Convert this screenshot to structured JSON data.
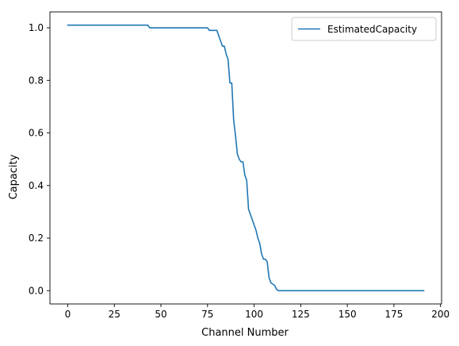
{
  "chart_data": {
    "type": "line",
    "title": "",
    "xlabel": "Channel Number",
    "ylabel": "Capacity",
    "xlim": [
      -9.55,
      200.55
    ],
    "ylim": [
      -0.0505,
      1.0605
    ],
    "x_ticks": [
      0,
      25,
      50,
      75,
      100,
      125,
      150,
      175,
      200
    ],
    "y_ticks": [
      0.0,
      0.2,
      0.4,
      0.6,
      0.8,
      1.0
    ],
    "x_tick_labels": [
      "0",
      "25",
      "50",
      "75",
      "100",
      "125",
      "150",
      "175",
      "200"
    ],
    "y_tick_labels": [
      "0.0",
      "0.2",
      "0.4",
      "0.6",
      "0.8",
      "1.0"
    ],
    "grid": false,
    "legend_position": "top-right",
    "series": [
      {
        "name": "EstimatedCapacity",
        "color": "#1f77b4",
        "x": [
          0,
          43,
          44,
          45,
          75,
          76,
          80,
          81,
          82,
          83,
          84,
          85,
          86,
          87,
          88,
          89,
          90,
          91,
          92,
          93,
          94,
          95,
          96,
          97,
          98,
          99,
          100,
          101,
          102,
          103,
          104,
          105,
          106,
          107,
          108,
          109,
          110,
          111,
          112,
          113,
          114,
          115,
          116,
          117,
          191
        ],
        "y": [
          1.01,
          1.01,
          1.0,
          1.0,
          1.0,
          0.99,
          0.99,
          0.97,
          0.95,
          0.93,
          0.93,
          0.9,
          0.88,
          0.79,
          0.79,
          0.65,
          0.59,
          0.52,
          0.5,
          0.49,
          0.49,
          0.44,
          0.42,
          0.31,
          0.29,
          0.27,
          0.25,
          0.23,
          0.2,
          0.18,
          0.14,
          0.12,
          0.12,
          0.11,
          0.05,
          0.03,
          0.025,
          0.02,
          0.005,
          0.0,
          0.0,
          0.0,
          0.0,
          0.0,
          0.0
        ]
      }
    ]
  }
}
